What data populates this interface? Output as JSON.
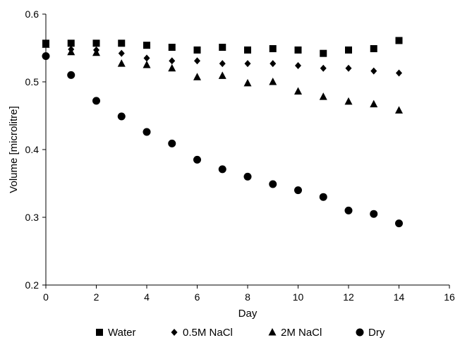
{
  "chart_data": {
    "type": "scatter",
    "title": "",
    "xlabel": "Day",
    "ylabel": "Volume [microlitre]",
    "xlim": [
      0,
      16
    ],
    "ylim": [
      0.2,
      0.6
    ],
    "xticks": [
      0,
      2,
      4,
      6,
      8,
      10,
      12,
      14,
      16
    ],
    "yticks": [
      0.2,
      0.3,
      0.4,
      0.5,
      0.6
    ],
    "grid": false,
    "legend_position": "bottom",
    "series": [
      {
        "name": "Water",
        "marker": "square",
        "color": "#000000",
        "x": [
          0,
          1,
          2,
          3,
          4,
          5,
          6,
          7,
          8,
          9,
          10,
          11,
          12,
          13,
          14
        ],
        "y": [
          0.557,
          0.557,
          0.557,
          0.557,
          0.554,
          0.551,
          0.547,
          0.551,
          0.547,
          0.549,
          0.547,
          0.542,
          0.547,
          0.549,
          0.561
        ]
      },
      {
        "name": "0.5M NaCl",
        "marker": "diamond",
        "color": "#000000",
        "x": [
          0,
          1,
          2,
          3,
          4,
          5,
          6,
          7,
          8,
          9,
          10,
          11,
          12,
          13,
          14
        ],
        "y": [
          0.556,
          0.548,
          0.547,
          0.542,
          0.535,
          0.531,
          0.531,
          0.527,
          0.527,
          0.527,
          0.524,
          0.52,
          0.52,
          0.516,
          0.513
        ]
      },
      {
        "name": "2M NaCl",
        "marker": "triangle",
        "color": "#000000",
        "x": [
          0,
          1,
          2,
          3,
          4,
          5,
          6,
          7,
          8,
          9,
          10,
          11,
          12,
          13,
          14
        ],
        "y": [
          0.555,
          0.544,
          0.543,
          0.527,
          0.525,
          0.52,
          0.507,
          0.509,
          0.498,
          0.5,
          0.486,
          0.478,
          0.471,
          0.467,
          0.458
        ]
      },
      {
        "name": "Dry",
        "marker": "circle",
        "color": "#000000",
        "x": [
          0,
          1,
          2,
          3,
          4,
          5,
          6,
          7,
          8,
          9,
          10,
          11,
          12,
          13,
          14
        ],
        "y": [
          0.538,
          0.51,
          0.472,
          0.449,
          0.426,
          0.409,
          0.385,
          0.371,
          0.36,
          0.349,
          0.34,
          0.33,
          0.31,
          0.305,
          0.291
        ]
      }
    ]
  }
}
